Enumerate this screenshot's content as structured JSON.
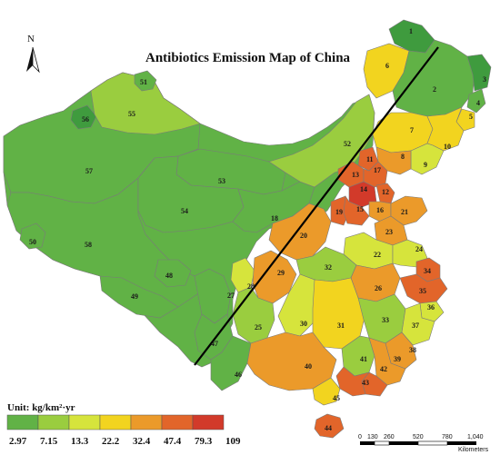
{
  "map": {
    "title": "Antibiotics Emission Map of China",
    "north_label": "N",
    "north_arrow_icon": "north-arrow-icon",
    "legend": {
      "title": "Unit: kg/km²·yr",
      "values": [
        "2.97",
        "7.15",
        "13.3",
        "22.2",
        "32.4",
        "47.4",
        "79.3",
        "109"
      ],
      "colors": [
        "#3f9b3e",
        "#61b246",
        "#9acd3f",
        "#d6e43c",
        "#f2d41f",
        "#eb9a2a",
        "#e2652a",
        "#d23a2a"
      ]
    },
    "scale_bar": {
      "ticks": [
        "0",
        "130",
        "260",
        "520",
        "780",
        "1,040"
      ],
      "unit": "Kilometers"
    },
    "regions": [
      {
        "id": "1",
        "cls": 0
      },
      {
        "id": "2",
        "cls": 1
      },
      {
        "id": "3",
        "cls": 0
      },
      {
        "id": "4",
        "cls": 1
      },
      {
        "id": "5",
        "cls": 4
      },
      {
        "id": "6",
        "cls": 4
      },
      {
        "id": "7",
        "cls": 4
      },
      {
        "id": "8",
        "cls": 5
      },
      {
        "id": "9",
        "cls": 3
      },
      {
        "id": "10",
        "cls": 4
      },
      {
        "id": "11",
        "cls": 6
      },
      {
        "id": "12",
        "cls": 6
      },
      {
        "id": "13",
        "cls": 6
      },
      {
        "id": "14",
        "cls": 7
      },
      {
        "id": "15",
        "cls": 6
      },
      {
        "id": "16",
        "cls": 5
      },
      {
        "id": "17",
        "cls": 6
      },
      {
        "id": "18",
        "cls": 1
      },
      {
        "id": "19",
        "cls": 6
      },
      {
        "id": "20",
        "cls": 5
      },
      {
        "id": "21",
        "cls": 5
      },
      {
        "id": "22",
        "cls": 3
      },
      {
        "id": "23",
        "cls": 5
      },
      {
        "id": "24",
        "cls": 3
      },
      {
        "id": "25",
        "cls": 2
      },
      {
        "id": "26",
        "cls": 5
      },
      {
        "id": "27",
        "cls": 1
      },
      {
        "id": "28",
        "cls": 3
      },
      {
        "id": "29",
        "cls": 5
      },
      {
        "id": "30",
        "cls": 3
      },
      {
        "id": "31",
        "cls": 4
      },
      {
        "id": "32",
        "cls": 2
      },
      {
        "id": "33",
        "cls": 2
      },
      {
        "id": "34",
        "cls": 6
      },
      {
        "id": "35",
        "cls": 6
      },
      {
        "id": "36",
        "cls": 3
      },
      {
        "id": "37",
        "cls": 3
      },
      {
        "id": "38",
        "cls": 5
      },
      {
        "id": "39",
        "cls": 5
      },
      {
        "id": "40",
        "cls": 5
      },
      {
        "id": "41",
        "cls": 2
      },
      {
        "id": "42",
        "cls": 6
      },
      {
        "id": "43",
        "cls": 6
      },
      {
        "id": "44",
        "cls": 6
      },
      {
        "id": "45",
        "cls": 4
      },
      {
        "id": "46",
        "cls": 1
      },
      {
        "id": "47",
        "cls": 1
      },
      {
        "id": "48",
        "cls": 1
      },
      {
        "id": "49",
        "cls": 1
      },
      {
        "id": "50",
        "cls": 1
      },
      {
        "id": "51",
        "cls": 1
      },
      {
        "id": "52",
        "cls": 2
      },
      {
        "id": "53",
        "cls": 1
      },
      {
        "id": "54",
        "cls": 1
      },
      {
        "id": "55",
        "cls": 2
      },
      {
        "id": "56",
        "cls": 0
      },
      {
        "id": "57",
        "cls": 1
      },
      {
        "id": "58",
        "cls": 1
      }
    ]
  }
}
